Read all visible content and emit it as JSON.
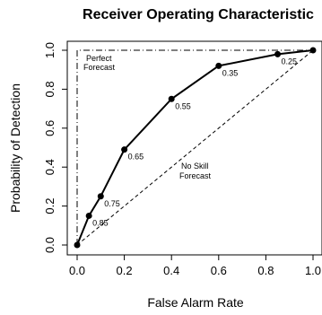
{
  "chart_data": {
    "type": "line",
    "title": "Receiver Operating Characteristic",
    "xlabel": "False Alarm Rate",
    "ylabel": "Probability of Detection",
    "xlim": [
      0,
      1
    ],
    "ylim": [
      0,
      1
    ],
    "x_ticks": [
      "0.0",
      "0.2",
      "0.4",
      "0.6",
      "0.8",
      "1.0"
    ],
    "y_ticks": [
      "0.0",
      "0.2",
      "0.4",
      "0.6",
      "0.8",
      "1.0"
    ],
    "grid": false,
    "series": [
      {
        "values": [
          {
            "x": 0.0,
            "y": 0.0,
            "label": ""
          },
          {
            "x": 0.05,
            "y": 0.15,
            "label": "0.85"
          },
          {
            "x": 0.1,
            "y": 0.25,
            "label": "0.75"
          },
          {
            "x": 0.2,
            "y": 0.49,
            "label": "0.65"
          },
          {
            "x": 0.4,
            "y": 0.75,
            "label": "0.55"
          },
          {
            "x": 0.6,
            "y": 0.92,
            "label": "0.35"
          },
          {
            "x": 0.85,
            "y": 0.98,
            "label": "0.25"
          },
          {
            "x": 1.0,
            "y": 1.0,
            "label": ""
          }
        ],
        "color": "#000000"
      }
    ],
    "reference_lines": [
      {
        "points": [
          [
            0,
            0
          ],
          [
            1,
            1
          ]
        ],
        "style": "dashed"
      },
      {
        "points": [
          [
            0,
            0
          ],
          [
            0,
            1
          ],
          [
            1,
            1
          ]
        ],
        "style": "dashdot"
      }
    ],
    "annotations": {
      "perfect": [
        "Perfect",
        "Forecast"
      ],
      "noskill": [
        "No Skill",
        "Forecast"
      ]
    }
  }
}
